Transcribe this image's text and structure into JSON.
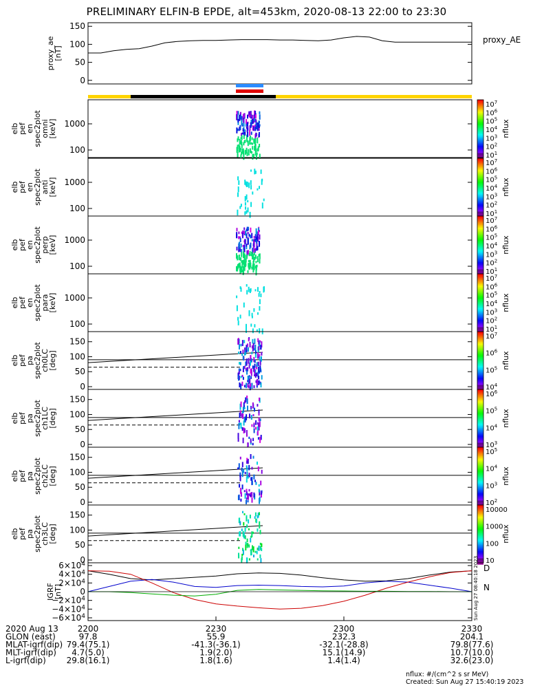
{
  "title": "PRELIMINARY ELFIN-B EPDE, alt=453km, 2020-08-13 22:00 to 23:30",
  "chart_data": [
    {
      "type": "line",
      "panel": "proxy_ae",
      "ylabel": [
        "proxy_ae",
        "[nT]"
      ],
      "legend": "proxy_AE",
      "yticks": [
        "150",
        "100",
        "50",
        "0"
      ],
      "ylim": [
        -10,
        160
      ],
      "x_minutes": [
        0,
        3,
        6,
        9,
        12,
        15,
        18,
        21,
        24,
        27,
        30,
        33,
        36,
        39,
        42,
        45,
        48,
        51,
        54,
        57,
        60,
        63,
        66,
        69,
        72,
        75,
        78,
        81,
        84,
        87,
        90
      ],
      "values": [
        76,
        76,
        82,
        86,
        88,
        95,
        104,
        108,
        110,
        111,
        111,
        112,
        113,
        113,
        113,
        112,
        112,
        111,
        110,
        112,
        118,
        122,
        120,
        110,
        106,
        106,
        106,
        106,
        106,
        106,
        106
      ]
    },
    {
      "type": "heatmap",
      "panel": "spec_omni",
      "ylabel": [
        "elb",
        "pef",
        "en",
        "spec2plot",
        "omni",
        "[keV]"
      ],
      "yticks": [
        "1000",
        "100"
      ],
      "colorbar_ticks": [
        "10^7",
        "10^6",
        "10^5",
        "10^4",
        "10^3",
        "10^2",
        "10^1"
      ],
      "colorbar_label": "nflux"
    },
    {
      "type": "heatmap",
      "panel": "spec_anti",
      "ylabel": [
        "elb",
        "pef",
        "en",
        "spec2plot",
        "anti",
        "[keV]"
      ],
      "yticks": [
        "1000",
        "100"
      ],
      "colorbar_ticks": [
        "10^7",
        "10^6",
        "10^5",
        "10^4",
        "10^3",
        "10^2",
        "10^1"
      ],
      "colorbar_label": "nflux"
    },
    {
      "type": "heatmap",
      "panel": "spec_perp",
      "ylabel": [
        "elb",
        "pef",
        "en",
        "spec2plot",
        "perp",
        "[keV]"
      ],
      "yticks": [
        "1000",
        "100"
      ],
      "colorbar_ticks": [
        "10^7",
        "10^6",
        "10^5",
        "10^4",
        "10^3",
        "10^2",
        "10^1"
      ],
      "colorbar_label": "nflux"
    },
    {
      "type": "heatmap",
      "panel": "spec_para",
      "ylabel": [
        "elb",
        "pef",
        "en",
        "spec2plot",
        "para",
        "[keV]"
      ],
      "yticks": [
        "1000",
        "100"
      ],
      "colorbar_ticks": [
        "10^7",
        "10^6",
        "10^5",
        "10^4",
        "10^3",
        "10^2",
        "10^1"
      ],
      "colorbar_label": "nflux"
    },
    {
      "type": "heatmap",
      "panel": "pa_ch0",
      "ylabel": [
        "elb",
        "pef",
        "pa",
        "spec2plot",
        "ch0LC",
        "[deg]"
      ],
      "yticks": [
        "150",
        "100",
        "50",
        "0"
      ],
      "ylim": [
        0,
        180
      ],
      "colorbar_ticks": [
        "10^7",
        "10^6",
        "10^5",
        "10^4"
      ],
      "colorbar_label": "nflux"
    },
    {
      "type": "heatmap",
      "panel": "pa_ch1",
      "ylabel": [
        "elb",
        "pef",
        "pa",
        "spec2plot",
        "ch1LC",
        "[deg]"
      ],
      "yticks": [
        "150",
        "100",
        "50",
        "0"
      ],
      "ylim": [
        0,
        180
      ],
      "colorbar_ticks": [
        "10^6",
        "10^5",
        "10^4",
        "10^3"
      ],
      "colorbar_label": "nflux"
    },
    {
      "type": "heatmap",
      "panel": "pa_ch2",
      "ylabel": [
        "elb",
        "pef",
        "pa",
        "spec2plot",
        "ch2LC",
        "[deg]"
      ],
      "yticks": [
        "150",
        "100",
        "50",
        "0"
      ],
      "ylim": [
        0,
        180
      ],
      "colorbar_ticks": [
        "10^5",
        "10^4",
        "10^3",
        "10^2"
      ],
      "colorbar_label": "nflux"
    },
    {
      "type": "heatmap",
      "panel": "pa_ch3",
      "ylabel": [
        "elb",
        "pef",
        "pa",
        "spec2plot",
        "ch3LC",
        "[deg]"
      ],
      "yticks": [
        "150",
        "100",
        "50",
        "0"
      ],
      "ylim": [
        0,
        180
      ],
      "colorbar_ticks": [
        "10000",
        "1000",
        "100",
        "10"
      ],
      "colorbar_label": "nflux"
    },
    {
      "type": "line",
      "panel": "igrf",
      "ylabel": [
        "IGRF",
        "[nT]"
      ],
      "yticks": [
        "6×10^4",
        "4×10^4",
        "2×10^4",
        "0",
        "−2×10^4",
        "−4×10^4",
        "−6×10^4"
      ],
      "ylim": [
        -60000,
        60000
      ],
      "legend": [
        "D",
        "N"
      ],
      "x_minutes": [
        0,
        5,
        10,
        15,
        20,
        25,
        30,
        35,
        40,
        45,
        50,
        55,
        60,
        65,
        70,
        75,
        80,
        85,
        90
      ],
      "series": [
        {
          "color": "#000000",
          "values": [
            48000,
            40000,
            30000,
            27000,
            30000,
            33000,
            36000,
            41000,
            43000,
            42000,
            38000,
            32000,
            27000,
            24000,
            25000,
            30000,
            38000,
            45000,
            48000
          ]
        },
        {
          "color": "#0000cc",
          "values": [
            0,
            12000,
            24000,
            28000,
            22000,
            12000,
            10000,
            14000,
            15000,
            14000,
            12000,
            11000,
            13000,
            20000,
            24000,
            22000,
            15000,
            8000,
            0
          ]
        },
        {
          "color": "#cc0000",
          "values": [
            48000,
            47000,
            40000,
            20000,
            -2000,
            -18000,
            -28000,
            -33000,
            -37000,
            -40000,
            -38000,
            -32000,
            -22000,
            -8000,
            8000,
            22000,
            34000,
            44000,
            48000
          ]
        },
        {
          "color": "#00aa00",
          "values": [
            0,
            0,
            -2000,
            -5000,
            -8000,
            -10000,
            -6000,
            3000,
            5000,
            4000,
            3000,
            2000,
            1500,
            1000,
            1000,
            500,
            500,
            0,
            0
          ]
        }
      ]
    }
  ],
  "time_axis": {
    "rows": [
      {
        "label": "2020 Aug 13",
        "values": [
          "2200",
          "2230",
          "2300",
          "2330"
        ]
      },
      {
        "label": "GLON (east)",
        "values": [
          "97.8",
          "55.9",
          "232.3",
          "204.1"
        ]
      },
      {
        "label": "MLAT-igrf(dip)",
        "values": [
          "79.4(75.1)",
          "-41.3(-36.1)",
          "-32.1(-28.8)",
          "79.8(77.6)"
        ]
      },
      {
        "label": "MLT-igrf(dip)",
        "values": [
          "4.7(5.0)",
          "1.9(2.0)",
          "15.1(14.9)",
          "10.7(10.0)"
        ]
      },
      {
        "label": "L-igrf(dip)",
        "values": [
          "29.8(16.1)",
          "1.8(1.6)",
          "1.4(1.4)",
          "32.6(23.0)"
        ]
      }
    ]
  },
  "side_stamp": "Sun Aug 27 08:40:18 2023",
  "footer": {
    "units": "nflux: #/(cm^2 s sr MeV)",
    "created": "Created: Sun Aug 27 15:40:19 2023"
  }
}
